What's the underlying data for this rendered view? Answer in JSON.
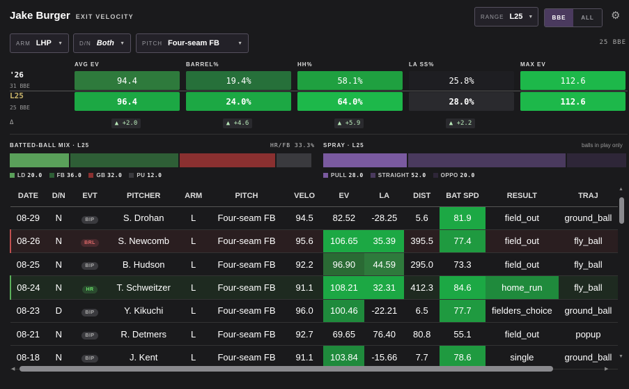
{
  "header": {
    "player": "Jake Burger",
    "subtitle": "EXIT VELOCITY"
  },
  "controls": {
    "range": {
      "label": "RANGE",
      "value": "L25"
    },
    "toggle": {
      "bbe": "BBE",
      "all": "ALL"
    },
    "arm": {
      "label": "ARM",
      "value": "LHP"
    },
    "dn": {
      "label": "D/N",
      "value": "Both"
    },
    "pitch": {
      "label": "PITCH",
      "value": "Four-seam FB"
    },
    "bbe_count": "25 BBE"
  },
  "summary": {
    "rows": [
      {
        "label": "'26",
        "sub": "31 BBE"
      },
      {
        "label": "L25",
        "sub": "25 BBE"
      }
    ],
    "delta_label": "Δ",
    "metrics": [
      {
        "name": "AVG EV",
        "v26": "94.4",
        "l25": "96.4",
        "delta": "▲ +2.0"
      },
      {
        "name": "BARREL%",
        "v26": "19.4%",
        "l25": "24.0%",
        "delta": "▲ +4.6"
      },
      {
        "name": "HH%",
        "v26": "58.1%",
        "l25": "64.0%",
        "delta": "▲ +5.9"
      },
      {
        "name": "LA SS%",
        "v26": "25.8%",
        "l25": "28.0%",
        "delta": "▲ +2.2"
      },
      {
        "name": "MAX EV",
        "v26": "112.6",
        "l25": "112.6",
        "delta": ""
      }
    ]
  },
  "batted_mix": {
    "title": "BATTED-BALL MIX · L25",
    "hrfb": "HR/FB 33.3%",
    "segments": [
      {
        "name": "LD",
        "value": 20.0,
        "color": "#5aa05a"
      },
      {
        "name": "FB",
        "value": 36.0,
        "color": "#2e5e36"
      },
      {
        "name": "GB",
        "value": 32.0,
        "color": "#8a3030"
      },
      {
        "name": "PU",
        "value": 12.0,
        "color": "#3a3a3e"
      }
    ],
    "legend": [
      {
        "name": "LD",
        "val": "20.0"
      },
      {
        "name": "FB",
        "val": "36.0"
      },
      {
        "name": "GB",
        "val": "32.0"
      },
      {
        "name": "PU",
        "val": "12.0"
      }
    ]
  },
  "spray": {
    "title": "SPRAY · L25",
    "note": "balls in play only",
    "segments": [
      {
        "name": "PULL",
        "value": 28.0,
        "color": "#7a5aa0"
      },
      {
        "name": "STRAIGHT",
        "value": 52.0,
        "color": "#4a3a5e"
      },
      {
        "name": "OPPO",
        "value": 20.0,
        "color": "#2e2638"
      }
    ],
    "legend": [
      {
        "name": "PULL",
        "val": "28.0"
      },
      {
        "name": "STRAIGHT",
        "val": "52.0"
      },
      {
        "name": "OPPO",
        "val": "20.0"
      }
    ]
  },
  "table": {
    "columns": [
      "DATE",
      "D/N",
      "EVT",
      "PITCHER",
      "ARM",
      "PITCH",
      "VELO",
      "EV",
      "LA",
      "DIST",
      "BAT SPD",
      "RESULT",
      "TRAJ"
    ],
    "rows": [
      {
        "date": "08-29",
        "dn": "N",
        "evt": "BIP",
        "pitcher": "S. Drohan",
        "arm": "L",
        "pitch": "Four-seam FB",
        "velo": "94.5",
        "ev": "82.52",
        "la": "-28.25",
        "dist": "5.6",
        "bat": "81.9",
        "result": "field_out",
        "traj": "ground_ball"
      },
      {
        "date": "08-26",
        "dn": "N",
        "evt": "BRL",
        "pitcher": "S. Newcomb",
        "arm": "L",
        "pitch": "Four-seam FB",
        "velo": "95.6",
        "ev": "106.65",
        "la": "35.39",
        "dist": "395.5",
        "bat": "77.4",
        "result": "field_out",
        "traj": "fly_ball"
      },
      {
        "date": "08-25",
        "dn": "N",
        "evt": "BIP",
        "pitcher": "B. Hudson",
        "arm": "L",
        "pitch": "Four-seam FB",
        "velo": "92.2",
        "ev": "96.90",
        "la": "44.59",
        "dist": "295.0",
        "bat": "73.3",
        "result": "field_out",
        "traj": "fly_ball"
      },
      {
        "date": "08-24",
        "dn": "N",
        "evt": "HR",
        "pitcher": "T. Schweitzer",
        "arm": "L",
        "pitch": "Four-seam FB",
        "velo": "91.1",
        "ev": "108.21",
        "la": "32.31",
        "dist": "412.3",
        "bat": "84.6",
        "result": "home_run",
        "traj": "fly_ball"
      },
      {
        "date": "08-23",
        "dn": "D",
        "evt": "BIP",
        "pitcher": "Y. Kikuchi",
        "arm": "L",
        "pitch": "Four-seam FB",
        "velo": "96.0",
        "ev": "100.46",
        "la": "-22.21",
        "dist": "6.5",
        "bat": "77.7",
        "result": "fielders_choice",
        "traj": "ground_ball"
      },
      {
        "date": "08-21",
        "dn": "N",
        "evt": "BIP",
        "pitcher": "R. Detmers",
        "arm": "L",
        "pitch": "Four-seam FB",
        "velo": "92.7",
        "ev": "69.65",
        "la": "76.40",
        "dist": "80.8",
        "bat": "55.1",
        "result": "field_out",
        "traj": "popup"
      },
      {
        "date": "08-18",
        "dn": "N",
        "evt": "BIP",
        "pitcher": "J. Kent",
        "arm": "L",
        "pitch": "Four-seam FB",
        "velo": "91.1",
        "ev": "103.84",
        "la": "-15.66",
        "dist": "7.7",
        "bat": "78.6",
        "result": "single",
        "traj": "ground_ball"
      }
    ]
  }
}
